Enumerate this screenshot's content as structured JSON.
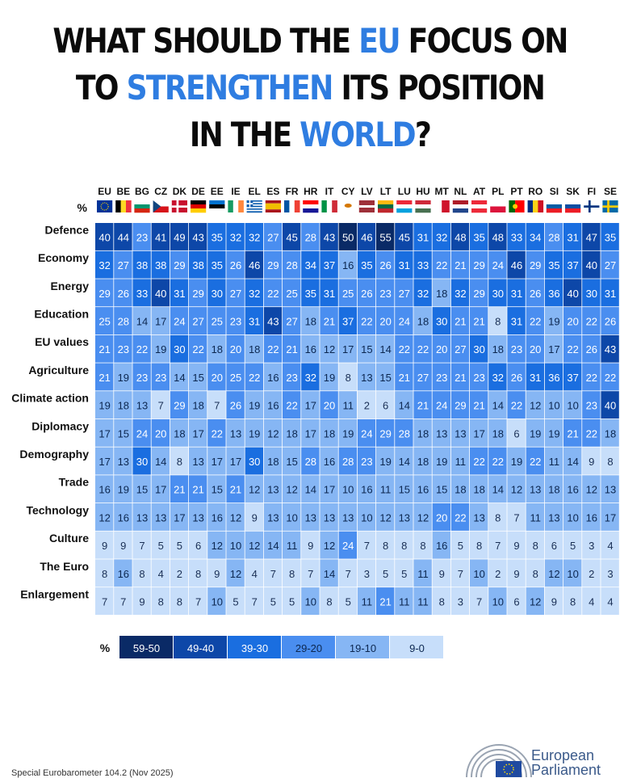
{
  "title": {
    "parts": [
      {
        "text": "WHAT SHOULD THE ",
        "hl": false
      },
      {
        "text": "EU",
        "hl": true
      },
      {
        "text": " FOCUS ON",
        "hl": false
      },
      {
        "br": true
      },
      {
        "text": "TO ",
        "hl": false
      },
      {
        "text": "STRENGTHEN",
        "hl": true
      },
      {
        "text": " ITS POSITION",
        "hl": false
      },
      {
        "br": true
      },
      {
        "text": "IN THE ",
        "hl": false
      },
      {
        "text": "WORLD",
        "hl": true
      },
      {
        "text": "?",
        "hl": false
      }
    ]
  },
  "colors": {
    "highlight": "#2f7de1",
    "scale": [
      "#0a2a66",
      "#0d47a8",
      "#1a6ee0",
      "#4a8ef0",
      "#86b6f4",
      "#c7defa"
    ]
  },
  "chart_data": {
    "type": "heatmap",
    "unit_label": "%",
    "columns": [
      "EU",
      "BE",
      "BG",
      "CZ",
      "DK",
      "DE",
      "EE",
      "IE",
      "EL",
      "ES",
      "FR",
      "HR",
      "IT",
      "CY",
      "LV",
      "LT",
      "LU",
      "HU",
      "MT",
      "NL",
      "AT",
      "PL",
      "PT",
      "RO",
      "SI",
      "SK",
      "FI",
      "SE"
    ],
    "rows": [
      "Defence",
      "Economy",
      "Energy",
      "Education",
      "EU values",
      "Agriculture",
      "Climate action",
      "Diplomacy",
      "Demography",
      "Trade",
      "Technology",
      "Culture",
      "The Euro",
      "Enlargement"
    ],
    "values": [
      [
        40,
        44,
        23,
        41,
        49,
        43,
        35,
        32,
        32,
        27,
        45,
        28,
        43,
        50,
        46,
        55,
        45,
        31,
        32,
        48,
        35,
        48,
        33,
        34,
        28,
        31,
        47,
        35
      ],
      [
        32,
        27,
        38,
        38,
        29,
        38,
        35,
        26,
        46,
        29,
        28,
        34,
        37,
        16,
        35,
        26,
        31,
        33,
        22,
        21,
        29,
        24,
        46,
        29,
        35,
        37,
        40,
        27
      ],
      [
        29,
        26,
        33,
        40,
        31,
        29,
        30,
        27,
        32,
        22,
        25,
        35,
        31,
        25,
        26,
        23,
        27,
        32,
        18,
        32,
        29,
        30,
        31,
        26,
        36,
        40,
        30,
        31
      ],
      [
        25,
        28,
        14,
        17,
        24,
        27,
        25,
        23,
        31,
        43,
        27,
        18,
        21,
        37,
        22,
        20,
        24,
        18,
        30,
        21,
        21,
        8,
        31,
        22,
        19,
        20,
        22,
        26
      ],
      [
        21,
        23,
        22,
        19,
        30,
        22,
        18,
        20,
        18,
        22,
        21,
        16,
        12,
        17,
        15,
        14,
        22,
        22,
        20,
        27,
        30,
        18,
        23,
        20,
        17,
        22,
        26,
        43
      ],
      [
        21,
        19,
        23,
        23,
        14,
        15,
        20,
        25,
        22,
        16,
        23,
        32,
        19,
        8,
        13,
        15,
        21,
        27,
        23,
        21,
        23,
        32,
        26,
        31,
        36,
        37,
        22,
        22
      ],
      [
        19,
        18,
        13,
        7,
        29,
        18,
        7,
        26,
        19,
        16,
        22,
        17,
        20,
        11,
        2,
        6,
        14,
        21,
        24,
        29,
        21,
        14,
        22,
        12,
        10,
        10,
        23,
        40
      ],
      [
        17,
        15,
        24,
        20,
        18,
        17,
        22,
        13,
        19,
        12,
        18,
        17,
        18,
        19,
        24,
        29,
        28,
        18,
        13,
        13,
        17,
        18,
        6,
        19,
        19,
        21,
        22,
        18
      ],
      [
        17,
        13,
        30,
        14,
        8,
        13,
        17,
        17,
        30,
        18,
        15,
        28,
        16,
        28,
        23,
        19,
        14,
        18,
        19,
        11,
        22,
        22,
        19,
        22,
        11,
        14,
        9,
        8
      ],
      [
        16,
        19,
        15,
        17,
        21,
        21,
        15,
        21,
        12,
        13,
        12,
        14,
        17,
        10,
        16,
        11,
        15,
        16,
        15,
        18,
        18,
        14,
        12,
        13,
        18,
        16,
        12,
        13
      ],
      [
        12,
        16,
        13,
        13,
        17,
        13,
        16,
        12,
        9,
        13,
        10,
        13,
        13,
        13,
        10,
        12,
        13,
        12,
        20,
        22,
        13,
        8,
        7,
        11,
        13,
        10,
        16,
        17
      ],
      [
        9,
        9,
        7,
        5,
        5,
        6,
        12,
        10,
        12,
        14,
        11,
        9,
        12,
        24,
        7,
        8,
        8,
        8,
        16,
        5,
        8,
        7,
        9,
        8,
        6,
        5,
        3,
        4
      ],
      [
        8,
        16,
        8,
        4,
        2,
        8,
        9,
        12,
        4,
        7,
        8,
        7,
        14,
        7,
        3,
        5,
        5,
        11,
        9,
        7,
        10,
        2,
        9,
        8,
        12,
        10,
        2,
        3
      ],
      [
        7,
        7,
        9,
        8,
        8,
        7,
        10,
        5,
        7,
        5,
        5,
        10,
        8,
        5,
        11,
        21,
        11,
        11,
        8,
        3,
        7,
        10,
        6,
        12,
        9,
        8,
        4,
        4
      ]
    ],
    "legend": [
      "59-50",
      "49-40",
      "39-30",
      "29-20",
      "19-10",
      "9-0"
    ]
  },
  "flags": {
    "EU": {
      "type": "eu"
    },
    "BE": {
      "type": "v",
      "c": [
        "#000000",
        "#fdda24",
        "#ef3340"
      ]
    },
    "BG": {
      "type": "h",
      "c": [
        "#ffffff",
        "#00966e",
        "#d62612"
      ]
    },
    "CZ": {
      "type": "cz"
    },
    "DK": {
      "type": "cross",
      "bg": "#c8102e",
      "fg": "#ffffff"
    },
    "DE": {
      "type": "h",
      "c": [
        "#000000",
        "#dd0000",
        "#ffce00"
      ]
    },
    "EE": {
      "type": "h",
      "c": [
        "#0072ce",
        "#000000",
        "#ffffff"
      ]
    },
    "IE": {
      "type": "v",
      "c": [
        "#169b62",
        "#ffffff",
        "#ff883e"
      ]
    },
    "EL": {
      "type": "gr"
    },
    "ES": {
      "type": "es"
    },
    "FR": {
      "type": "v",
      "c": [
        "#0055a4",
        "#ffffff",
        "#ef4135"
      ]
    },
    "HR": {
      "type": "h",
      "c": [
        "#ff0000",
        "#ffffff",
        "#171796"
      ]
    },
    "IT": {
      "type": "v",
      "c": [
        "#009246",
        "#ffffff",
        "#ce2b37"
      ]
    },
    "CY": {
      "type": "cy"
    },
    "LV": {
      "type": "lv"
    },
    "LT": {
      "type": "h",
      "c": [
        "#fdb913",
        "#006a44",
        "#c1272d"
      ]
    },
    "LU": {
      "type": "h",
      "c": [
        "#ed2939",
        "#ffffff",
        "#00a1de"
      ]
    },
    "HU": {
      "type": "h",
      "c": [
        "#ce2939",
        "#ffffff",
        "#477050"
      ]
    },
    "MT": {
      "type": "v2",
      "c": [
        "#ffffff",
        "#cf142b"
      ]
    },
    "NL": {
      "type": "h",
      "c": [
        "#ae1c28",
        "#ffffff",
        "#21468b"
      ]
    },
    "AT": {
      "type": "h",
      "c": [
        "#ed2939",
        "#ffffff",
        "#ed2939"
      ]
    },
    "PL": {
      "type": "h2",
      "c": [
        "#ffffff",
        "#dc143c"
      ]
    },
    "PT": {
      "type": "pt"
    },
    "RO": {
      "type": "v",
      "c": [
        "#002b7f",
        "#fcd116",
        "#ce1126"
      ]
    },
    "SI": {
      "type": "h",
      "c": [
        "#ffffff",
        "#005da4",
        "#ed1c24"
      ]
    },
    "SK": {
      "type": "h",
      "c": [
        "#ffffff",
        "#0b4ea2",
        "#ee1c25"
      ]
    },
    "FI": {
      "type": "cross",
      "bg": "#ffffff",
      "fg": "#003580"
    },
    "SE": {
      "type": "cross",
      "bg": "#006aa7",
      "fg": "#fecc00"
    }
  },
  "footer": {
    "source": "Special Eurobarometer 104.2 (Nov 2025)",
    "logo_line1": "European",
    "logo_line2": "Parliament"
  }
}
